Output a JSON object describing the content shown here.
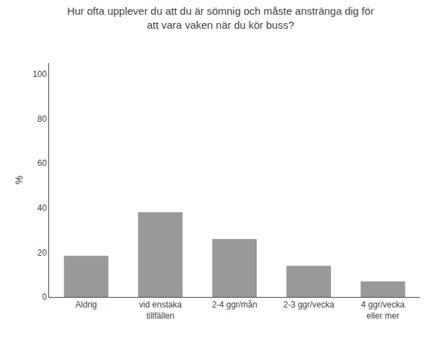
{
  "chart_data": {
    "type": "bar",
    "title": "Hur ofta upplever du att du är sömnig och måste anstränga dig för\natt vara vaken när du kör buss?",
    "categories": [
      "Aldrig",
      "vid enstaka\ntillfällen",
      "2-4 ggr/mån",
      "2-3 ggr/vecka",
      "4 ggr/vecka\neller mer"
    ],
    "values": [
      18.5,
      38.0,
      26.0,
      14.0,
      7.0
    ],
    "color": "#999999",
    "ylabel": "%",
    "ylim": [
      0,
      105
    ],
    "yticks": [
      0,
      20,
      40,
      60,
      80,
      100
    ],
    "grid": false
  }
}
